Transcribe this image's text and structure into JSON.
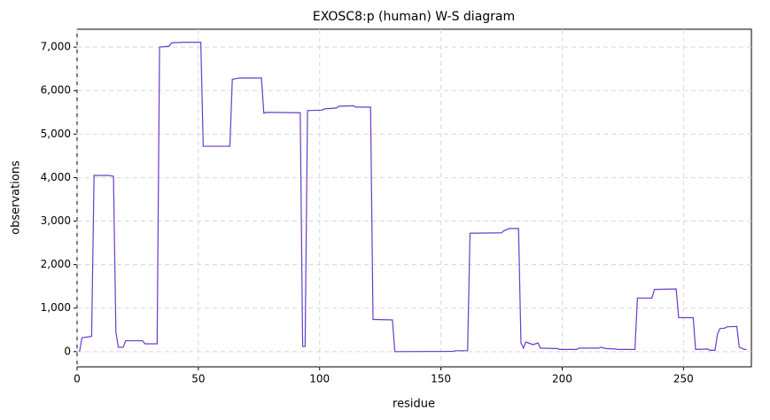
{
  "chart_data": {
    "type": "line",
    "title": "EXOSC8:p (human) W-S diagram",
    "x_label": "residue",
    "y_label": "observations",
    "xlim": [
      0,
      278
    ],
    "ylim": [
      -350,
      7410
    ],
    "xticks": [
      0,
      50,
      100,
      150,
      200,
      250
    ],
    "yticks": [
      0,
      {
        "value": 1000,
        "label": "1,000"
      },
      {
        "value": 2000,
        "label": "2,000"
      },
      {
        "value": 3000,
        "label": "3,000"
      },
      {
        "value": 4000,
        "label": "4,000"
      },
      {
        "value": 5000,
        "label": "5,000"
      },
      {
        "value": 6000,
        "label": "6,000"
      },
      {
        "value": 7000,
        "label": "7,000"
      }
    ],
    "grid": true,
    "x": [
      1,
      2,
      6,
      7,
      13,
      15,
      16,
      17,
      19,
      20,
      27,
      28,
      33,
      34,
      38,
      39,
      44,
      51,
      52,
      63,
      64,
      67,
      76,
      77,
      78,
      92,
      93,
      94,
      95,
      101,
      102,
      107,
      108,
      114,
      115,
      121,
      122,
      130,
      131,
      155,
      156,
      161,
      162,
      175,
      176,
      177,
      178,
      182,
      183,
      184,
      185,
      186,
      188,
      190,
      191,
      198,
      199,
      206,
      207,
      215,
      216,
      218,
      222,
      223,
      230,
      231,
      237,
      238,
      247,
      248,
      254,
      255,
      260,
      261,
      263,
      264,
      265,
      267,
      268,
      272,
      273,
      274,
      275,
      276
    ],
    "series": [
      {
        "name": "observations",
        "color": "#6a3bcc",
        "values": [
          0,
          320,
          350,
          4050,
          4050,
          4030,
          450,
          100,
          100,
          250,
          250,
          180,
          180,
          7000,
          7020,
          7100,
          7110,
          7110,
          4720,
          4720,
          6260,
          6290,
          6290,
          5480,
          5500,
          5490,
          120,
          120,
          5540,
          5550,
          5580,
          5600,
          5640,
          5650,
          5620,
          5620,
          740,
          730,
          0,
          5,
          20,
          20,
          2720,
          2730,
          2780,
          2800,
          2830,
          2830,
          200,
          80,
          220,
          200,
          160,
          200,
          80,
          70,
          50,
          50,
          80,
          80,
          100,
          70,
          60,
          50,
          50,
          1230,
          1230,
          1430,
          1440,
          780,
          780,
          50,
          60,
          30,
          30,
          400,
          530,
          540,
          570,
          580,
          100,
          80,
          50,
          50
        ]
      }
    ]
  }
}
